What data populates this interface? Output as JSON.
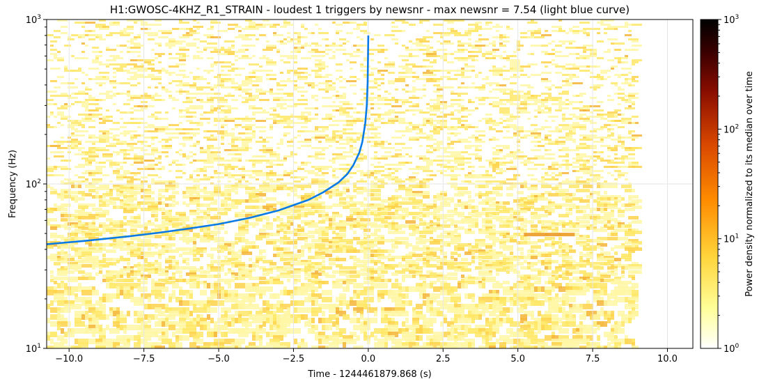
{
  "chart_data": {
    "type": "heatmap",
    "title": "H1:GWOSC-4KHZ_R1_STRAIN - loudest 1 triggers by newsnr - max newsnr = 7.54 (light blue curve)",
    "xlabel": "Time - 1244461879.868 (s)",
    "ylabel": "Frequency (Hz)",
    "xlim": [
      -10.75,
      10.85
    ],
    "ylim": [
      10,
      1000
    ],
    "yscale": "log",
    "grid": true,
    "data_extent_x": [
      -10.75,
      8.85
    ],
    "x_ticks": [
      -10.0,
      -7.5,
      -5.0,
      -2.5,
      0.0,
      2.5,
      5.0,
      7.5,
      10.0
    ],
    "x_tick_labels": [
      "−10.0",
      "−7.5",
      "−5.0",
      "−2.5",
      "0.0",
      "2.5",
      "5.0",
      "7.5",
      "10.0"
    ],
    "y_ticks": [
      10,
      100,
      1000
    ],
    "y_tick_labels": [
      [
        "10",
        "1"
      ],
      [
        "10",
        "2"
      ],
      [
        "10",
        "3"
      ]
    ],
    "colormap": "afmhot_r",
    "colorbar": {
      "label": "Power density normalized to its median over time",
      "scale": "log",
      "range": [
        1,
        1000
      ],
      "ticks": [
        1,
        10,
        100,
        1000
      ],
      "tick_labels": [
        [
          "10",
          "0"
        ],
        [
          "10",
          "1"
        ],
        [
          "10",
          "2"
        ],
        [
          "10",
          "3"
        ]
      ]
    },
    "series": [
      {
        "color": "#0a7ae6",
        "points": [
          [
            -10.75,
            43
          ],
          [
            -9.5,
            45
          ],
          [
            -8.0,
            48
          ],
          [
            -7.0,
            50.5
          ],
          [
            -6.0,
            53.5
          ],
          [
            -5.0,
            57
          ],
          [
            -4.0,
            62
          ],
          [
            -3.0,
            69
          ],
          [
            -2.0,
            80
          ],
          [
            -1.5,
            89
          ],
          [
            -1.0,
            102
          ],
          [
            -0.7,
            115
          ],
          [
            -0.5,
            130
          ],
          [
            -0.3,
            155
          ],
          [
            -0.2,
            180
          ],
          [
            -0.1,
            235
          ],
          [
            -0.05,
            300
          ],
          [
            -0.02,
            420
          ],
          [
            0.0,
            800
          ]
        ]
      }
    ],
    "features": [
      {
        "label": "narrow line",
        "t_start": 5.2,
        "t_end": 6.9,
        "freq": 49
      }
    ]
  },
  "colors": {
    "background": "#ffffff",
    "curve": "#0a7ae6",
    "grid": "#e6e6e6"
  }
}
